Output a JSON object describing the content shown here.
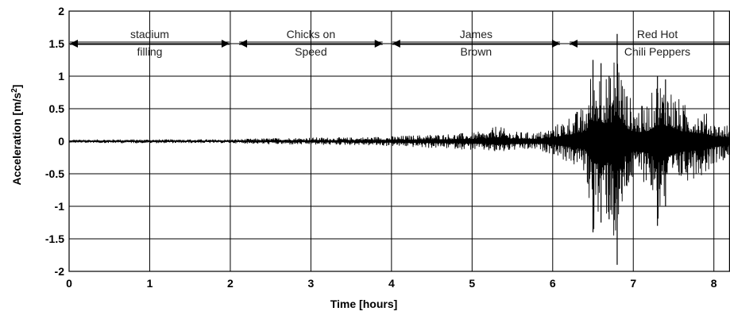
{
  "chart_data": {
    "type": "line",
    "xlabel": "Time [hours]",
    "ylabel": "Acceleration [m/s",
    "ylabel_sup": "2",
    "ylabel_close": "]",
    "xlim": [
      0,
      8.2
    ],
    "ylim": [
      -2,
      2
    ],
    "x_ticks": [
      0,
      1,
      2,
      3,
      4,
      5,
      6,
      7,
      8
    ],
    "x_tick_labels": [
      "0",
      "1",
      "2",
      "3",
      "4",
      "5",
      "6",
      "7",
      "8"
    ],
    "y_ticks": [
      2,
      1.5,
      1,
      0.5,
      0,
      -0.5,
      -1,
      -1.5,
      -2
    ],
    "y_tick_labels": [
      "2",
      "1.5",
      "1",
      "0.5",
      "0",
      "-0.5",
      "-1",
      "-1.5",
      "-2"
    ],
    "grid": true,
    "annotation_arrow_y": 1.5,
    "segments": [
      {
        "line1": "stadium",
        "line2": "filling",
        "start": 0,
        "end": 2
      },
      {
        "line1": "Chicks on",
        "line2": "Speed",
        "start": 2.1,
        "end": 3.9
      },
      {
        "line1": "James",
        "line2": "Brown",
        "start": 4.0,
        "end": 6.1
      },
      {
        "line1": "Red Hot",
        "line2": "Chili Peppers",
        "start": 6.2,
        "end": 8.2
      }
    ],
    "envelope": {
      "x": [
        0,
        0.5,
        1.0,
        1.5,
        2.0,
        2.5,
        3.0,
        3.5,
        4.0,
        4.2,
        4.5,
        4.8,
        5.0,
        5.2,
        5.3,
        5.5,
        5.8,
        6.0,
        6.2,
        6.4,
        6.5,
        6.6,
        6.7,
        6.8,
        6.9,
        7.0,
        7.1,
        7.2,
        7.3,
        7.4,
        7.5,
        7.6,
        7.8,
        7.9,
        8.0,
        8.2
      ],
      "upper": [
        0.02,
        0.03,
        0.03,
        0.03,
        0.03,
        0.05,
        0.06,
        0.06,
        0.08,
        0.09,
        0.11,
        0.12,
        0.14,
        0.16,
        0.25,
        0.15,
        0.14,
        0.22,
        0.4,
        0.55,
        1.25,
        1.2,
        1.0,
        1.65,
        0.85,
        0.6,
        0.55,
        0.65,
        1.0,
        0.95,
        0.8,
        0.6,
        0.5,
        0.45,
        0.3,
        0.25
      ],
      "lower": [
        -0.02,
        -0.03,
        -0.03,
        -0.03,
        -0.03,
        -0.05,
        -0.06,
        -0.06,
        -0.08,
        -0.09,
        -0.11,
        -0.12,
        -0.14,
        -0.16,
        -0.2,
        -0.15,
        -0.14,
        -0.2,
        -0.35,
        -0.5,
        -1.4,
        -1.25,
        -1.2,
        -1.9,
        -0.9,
        -0.65,
        -0.6,
        -0.7,
        -1.3,
        -1.0,
        -0.8,
        -0.65,
        -0.55,
        -0.5,
        -0.35,
        -0.25
      ]
    },
    "line_color": "#000000",
    "grid_color": "#000000"
  }
}
